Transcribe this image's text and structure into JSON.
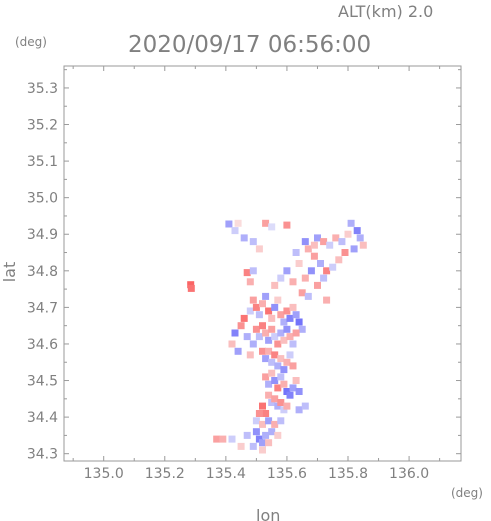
{
  "header": {
    "alt_label": "ALT(km)  2.0",
    "datetime": "2020/09/17 06:56:00"
  },
  "chart_data": {
    "type": "scatter",
    "title": "2020/09/17 06:56:00",
    "subtitle": "ALT(km)  2.0",
    "xlabel": "lon",
    "ylabel": "lat",
    "x_unit": "(deg)",
    "y_unit": "(deg)",
    "xlim": [
      134.87,
      136.17
    ],
    "ylim": [
      34.28,
      35.36
    ],
    "xticks": [
      "135.0",
      "135.2",
      "135.4",
      "135.6",
      "135.8",
      "136.0"
    ],
    "xtick_values": [
      135.0,
      135.2,
      135.4,
      135.6,
      135.8,
      136.0
    ],
    "yticks": [
      "34.3",
      "34.4",
      "34.5",
      "34.6",
      "34.7",
      "34.8",
      "34.9",
      "35.0",
      "35.1",
      "35.2",
      "35.3"
    ],
    "ytick_values": [
      34.3,
      34.4,
      34.5,
      34.6,
      34.7,
      34.8,
      34.9,
      35.0,
      35.1,
      35.2,
      35.3
    ],
    "grid": false,
    "colors": {
      "positive": "#e05a5a",
      "negative": "#5a5ae0",
      "axis": "#9a9a9a"
    },
    "points": [
      [
        135.285,
        34.762,
        1.0
      ],
      [
        135.287,
        34.752,
        0.9
      ],
      [
        135.41,
        34.928,
        -0.6
      ],
      [
        135.43,
        34.91,
        -0.3
      ],
      [
        135.44,
        34.93,
        0.2
      ],
      [
        135.46,
        34.89,
        -0.5
      ],
      [
        135.53,
        34.93,
        0.6
      ],
      [
        135.55,
        34.92,
        -0.2
      ],
      [
        135.6,
        34.925,
        0.7
      ],
      [
        135.49,
        34.88,
        -0.4
      ],
      [
        135.51,
        34.86,
        0.3
      ],
      [
        135.47,
        34.795,
        0.8
      ],
      [
        135.49,
        34.8,
        -0.4
      ],
      [
        135.48,
        34.77,
        0.5
      ],
      [
        135.66,
        34.88,
        -0.7
      ],
      [
        135.67,
        34.86,
        0.5
      ],
      [
        135.69,
        34.87,
        0.4
      ],
      [
        135.7,
        34.89,
        -0.6
      ],
      [
        135.72,
        34.88,
        0.6
      ],
      [
        135.74,
        34.87,
        -0.3
      ],
      [
        135.76,
        34.89,
        0.5
      ],
      [
        135.78,
        34.88,
        -0.4
      ],
      [
        135.8,
        34.9,
        0.3
      ],
      [
        135.83,
        34.91,
        -0.8
      ],
      [
        135.84,
        34.89,
        -0.5
      ],
      [
        135.85,
        34.87,
        0.4
      ],
      [
        135.82,
        34.86,
        -0.6
      ],
      [
        135.79,
        34.85,
        0.7
      ],
      [
        135.81,
        34.93,
        -0.5
      ],
      [
        135.69,
        34.84,
        0.6
      ],
      [
        135.71,
        34.82,
        -0.5
      ],
      [
        135.73,
        34.8,
        0.8
      ],
      [
        135.75,
        34.81,
        -0.3
      ],
      [
        135.77,
        34.83,
        0.4
      ],
      [
        135.72,
        34.78,
        -0.4
      ],
      [
        135.7,
        34.76,
        0.6
      ],
      [
        135.68,
        34.8,
        -0.7
      ],
      [
        135.66,
        34.78,
        0.5
      ],
      [
        135.64,
        34.82,
        0.3
      ],
      [
        135.63,
        34.85,
        -0.4
      ],
      [
        135.6,
        34.8,
        -0.6
      ],
      [
        135.62,
        34.77,
        0.5
      ],
      [
        135.58,
        34.78,
        -0.3
      ],
      [
        135.56,
        34.76,
        0.4
      ],
      [
        135.65,
        34.74,
        0.6
      ],
      [
        135.67,
        34.73,
        -0.4
      ],
      [
        135.73,
        34.72,
        0.5
      ],
      [
        135.43,
        34.63,
        -0.8
      ],
      [
        135.42,
        34.6,
        0.4
      ],
      [
        135.44,
        34.58,
        -0.6
      ],
      [
        135.45,
        34.65,
        0.7
      ],
      [
        135.47,
        34.62,
        -0.5
      ],
      [
        135.46,
        34.67,
        0.9
      ],
      [
        135.48,
        34.69,
        -0.3
      ],
      [
        135.49,
        34.72,
        0.6
      ],
      [
        135.5,
        34.7,
        0.8
      ],
      [
        135.51,
        34.68,
        -0.4
      ],
      [
        135.52,
        34.71,
        0.5
      ],
      [
        135.53,
        34.73,
        -0.6
      ],
      [
        135.54,
        34.69,
        0.9
      ],
      [
        135.55,
        34.67,
        0.4
      ],
      [
        135.56,
        34.7,
        -0.7
      ],
      [
        135.57,
        34.72,
        0.3
      ],
      [
        135.58,
        34.68,
        0.6
      ],
      [
        135.59,
        34.66,
        -0.5
      ],
      [
        135.6,
        34.69,
        0.7
      ],
      [
        135.61,
        34.67,
        -0.8
      ],
      [
        135.62,
        34.7,
        0.4
      ],
      [
        135.63,
        34.68,
        -0.6
      ],
      [
        135.64,
        34.66,
        -0.9
      ],
      [
        135.65,
        34.64,
        -0.5
      ],
      [
        135.5,
        34.64,
        0.7
      ],
      [
        135.51,
        34.62,
        -0.4
      ],
      [
        135.52,
        34.65,
        0.8
      ],
      [
        135.53,
        34.63,
        0.5
      ],
      [
        135.54,
        34.61,
        -0.6
      ],
      [
        135.55,
        34.64,
        0.6
      ],
      [
        135.56,
        34.62,
        -0.3
      ],
      [
        135.57,
        34.6,
        0.7
      ],
      [
        135.58,
        34.63,
        -0.5
      ],
      [
        135.59,
        34.61,
        0.4
      ],
      [
        135.6,
        34.64,
        -0.7
      ],
      [
        135.61,
        34.62,
        0.5
      ],
      [
        135.62,
        34.6,
        -0.4
      ],
      [
        135.63,
        34.63,
        0.6
      ],
      [
        135.49,
        34.6,
        -0.5
      ],
      [
        135.48,
        34.57,
        0.4
      ],
      [
        135.52,
        34.58,
        0.7
      ],
      [
        135.53,
        34.56,
        -0.6
      ],
      [
        135.54,
        34.58,
        0.5
      ],
      [
        135.55,
        34.55,
        -0.4
      ],
      [
        135.56,
        34.57,
        0.8
      ],
      [
        135.57,
        34.54,
        -0.5
      ],
      [
        135.58,
        34.56,
        0.4
      ],
      [
        135.59,
        34.53,
        -0.7
      ],
      [
        135.6,
        34.55,
        0.5
      ],
      [
        135.61,
        34.57,
        -0.3
      ],
      [
        135.62,
        34.54,
        0.6
      ],
      [
        135.53,
        34.51,
        0.6
      ],
      [
        135.54,
        34.49,
        -0.5
      ],
      [
        135.55,
        34.52,
        0.4
      ],
      [
        135.56,
        34.5,
        -0.7
      ],
      [
        135.57,
        34.48,
        0.8
      ],
      [
        135.58,
        34.51,
        -0.4
      ],
      [
        135.59,
        34.49,
        0.5
      ],
      [
        135.6,
        34.47,
        -0.9
      ],
      [
        135.61,
        34.46,
        -0.8
      ],
      [
        135.62,
        34.48,
        -0.6
      ],
      [
        135.63,
        34.5,
        0.4
      ],
      [
        135.64,
        34.47,
        -0.7
      ],
      [
        135.54,
        34.46,
        0.5
      ],
      [
        135.55,
        34.44,
        -0.4
      ],
      [
        135.56,
        34.45,
        0.6
      ],
      [
        135.57,
        34.43,
        -0.5
      ],
      [
        135.58,
        34.44,
        0.7
      ],
      [
        135.59,
        34.42,
        -0.3
      ],
      [
        135.6,
        34.43,
        0.5
      ],
      [
        135.52,
        34.43,
        0.9
      ],
      [
        135.53,
        34.41,
        0.8
      ],
      [
        135.51,
        34.41,
        0.7
      ],
      [
        135.64,
        34.42,
        -0.5
      ],
      [
        135.66,
        34.43,
        -0.4
      ],
      [
        135.5,
        34.39,
        -0.3
      ],
      [
        135.52,
        34.38,
        0.4
      ],
      [
        135.54,
        34.39,
        -0.6
      ],
      [
        135.56,
        34.38,
        0.5
      ],
      [
        135.58,
        34.39,
        -0.4
      ],
      [
        135.55,
        34.36,
        -0.5
      ],
      [
        135.57,
        34.35,
        0.3
      ],
      [
        135.5,
        34.36,
        -0.7
      ],
      [
        135.51,
        34.34,
        -0.8
      ],
      [
        135.52,
        34.33,
        -0.6
      ],
      [
        135.53,
        34.35,
        -0.5
      ],
      [
        135.54,
        34.33,
        0.4
      ],
      [
        135.49,
        34.32,
        -0.4
      ],
      [
        135.52,
        34.31,
        0.3
      ],
      [
        135.37,
        34.34,
        0.6
      ],
      [
        135.39,
        34.34,
        0.5
      ],
      [
        135.42,
        34.34,
        -0.3
      ],
      [
        135.47,
        34.35,
        -0.4
      ],
      [
        135.45,
        34.32,
        0.3
      ]
    ]
  }
}
